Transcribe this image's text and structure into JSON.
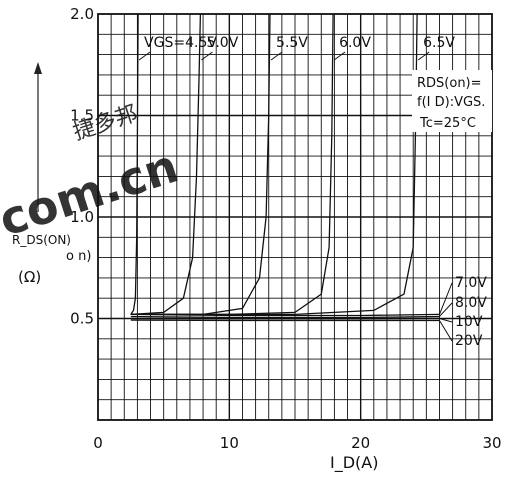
{
  "watermark": {
    "text": "com.cn",
    "chinese_text": "捷多邦",
    "color": "#e63b3b"
  },
  "chart_data": {
    "type": "line",
    "xlabel": "I_D(A)",
    "ylabel": "R_DS(ON)",
    "ylabel_extra": "o n)",
    "yunit": "(Ω)",
    "xlim": [
      0,
      30
    ],
    "ylim": [
      0,
      2.0
    ],
    "x_ticks": [
      {
        "value": 0,
        "label": "0"
      },
      {
        "value": 10,
        "label": "10"
      },
      {
        "value": 20,
        "label": "20"
      },
      {
        "value": 30,
        "label": "30"
      }
    ],
    "y_ticks": [
      {
        "value": 0.5,
        "label": "0.5"
      },
      {
        "value": 1.0,
        "label": "1.0"
      },
      {
        "value": 1.5,
        "label": "1.5"
      },
      {
        "value": 2.0,
        "label": "2.0"
      }
    ],
    "grid": true,
    "conditions": {
      "line1": "RDS(on)=",
      "line2": "f(I D):VGS.",
      "line3": "Tc=25°C"
    },
    "series": [
      {
        "name": "VGS=4.5V",
        "label": "VGS=4.5V",
        "label_side": "top",
        "points": [
          [
            2.5,
            0.52
          ],
          [
            2.7,
            0.54
          ],
          [
            2.85,
            0.6
          ],
          [
            2.95,
            0.9
          ],
          [
            3.0,
            1.4
          ],
          [
            3.05,
            2.0
          ]
        ]
      },
      {
        "name": "5.0V",
        "label": "5.0V",
        "label_side": "top",
        "points": [
          [
            2.5,
            0.52
          ],
          [
            5,
            0.53
          ],
          [
            6.5,
            0.6
          ],
          [
            7.2,
            0.8
          ],
          [
            7.5,
            1.2
          ],
          [
            7.7,
            1.7
          ],
          [
            7.8,
            2.0
          ]
        ]
      },
      {
        "name": "5.5V",
        "label": "5.5V",
        "label_side": "top",
        "points": [
          [
            2.5,
            0.52
          ],
          [
            8,
            0.52
          ],
          [
            11,
            0.55
          ],
          [
            12.3,
            0.7
          ],
          [
            12.8,
            1.0
          ],
          [
            13,
            1.5
          ],
          [
            13.1,
            2.0
          ]
        ]
      },
      {
        "name": "6.0V",
        "label": "6.0V",
        "label_side": "top",
        "points": [
          [
            2.5,
            0.52
          ],
          [
            10,
            0.52
          ],
          [
            15,
            0.53
          ],
          [
            17,
            0.62
          ],
          [
            17.6,
            0.85
          ],
          [
            17.8,
            1.4
          ],
          [
            17.9,
            2.0
          ]
        ]
      },
      {
        "name": "6.5V",
        "label": "6.5V",
        "label_side": "top",
        "points": [
          [
            2.5,
            0.52
          ],
          [
            15,
            0.52
          ],
          [
            21,
            0.54
          ],
          [
            23.3,
            0.62
          ],
          [
            24,
            0.85
          ],
          [
            24.2,
            1.5
          ],
          [
            24.3,
            2.0
          ]
        ]
      },
      {
        "name": "7.0V",
        "label": "7.0V",
        "label_side": "right",
        "points": [
          [
            2.5,
            0.52
          ],
          [
            10,
            0.515
          ],
          [
            20,
            0.515
          ],
          [
            26,
            0.52
          ]
        ]
      },
      {
        "name": "8.0V",
        "label": "8.0V",
        "label_side": "right",
        "points": [
          [
            2.5,
            0.51
          ],
          [
            10,
            0.505
          ],
          [
            20,
            0.505
          ],
          [
            26,
            0.51
          ]
        ]
      },
      {
        "name": "10V",
        "label": "10V",
        "label_side": "right",
        "points": [
          [
            2.5,
            0.5
          ],
          [
            10,
            0.498
          ],
          [
            20,
            0.498
          ],
          [
            26,
            0.5
          ]
        ]
      },
      {
        "name": "20V",
        "label": "20V",
        "label_side": "right",
        "points": [
          [
            2.5,
            0.492
          ],
          [
            10,
            0.49
          ],
          [
            20,
            0.49
          ],
          [
            26,
            0.49
          ]
        ]
      }
    ]
  }
}
